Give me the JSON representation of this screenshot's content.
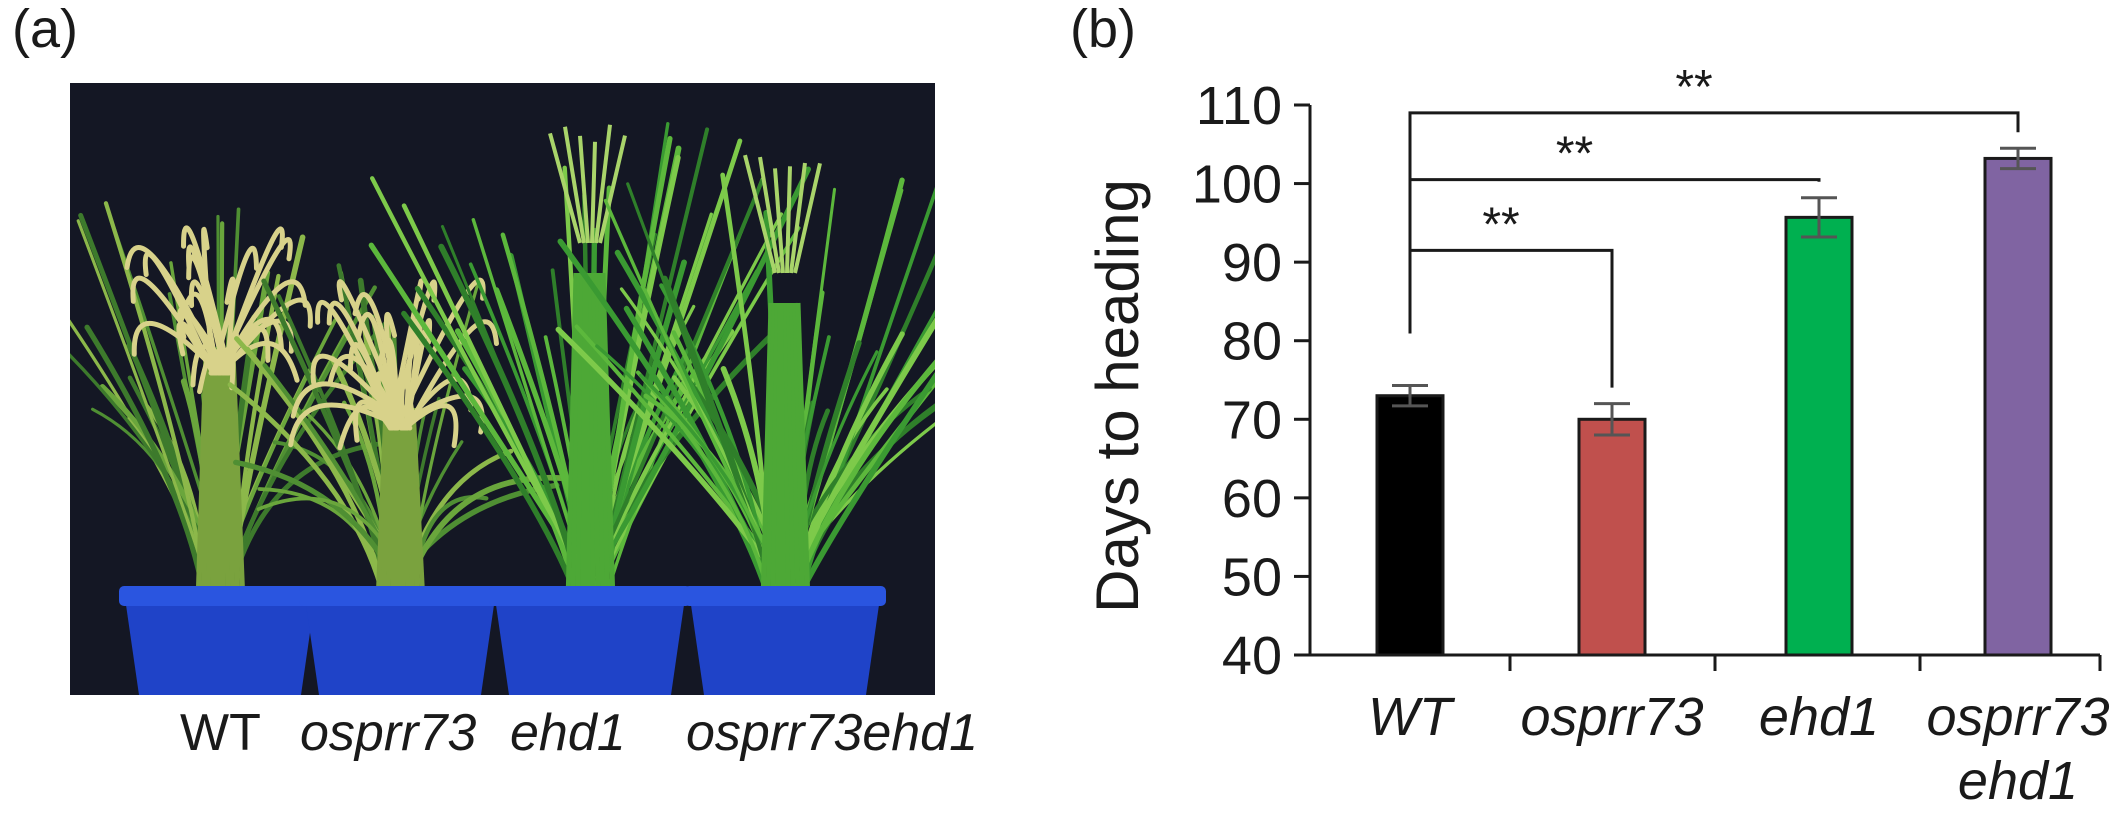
{
  "panels": {
    "a": {
      "label": "(a)"
    },
    "b": {
      "label": "(b)"
    }
  },
  "photo": {
    "icon": "rice-plants-photo",
    "background_color": "#141724",
    "pot_color": "#1f43c8",
    "genotypes": [
      {
        "label": "WT",
        "italic": false,
        "plant": "ripe"
      },
      {
        "label": "osprr73",
        "italic": true,
        "plant": "ripe"
      },
      {
        "label": "ehd1",
        "italic": true,
        "plant": "green"
      },
      {
        "label": "osprr73ehd1",
        "italic": true,
        "plant": "green"
      }
    ]
  },
  "chart_data": {
    "type": "bar",
    "title": "",
    "xlabel": "",
    "ylabel": "Days to heading",
    "ylim": [
      40,
      110
    ],
    "yticks": [
      40,
      50,
      60,
      70,
      80,
      90,
      100,
      110
    ],
    "grid": false,
    "categories": [
      [
        "WT"
      ],
      [
        "osprr73"
      ],
      [
        "ehd1"
      ],
      [
        "osprr73",
        "ehd1"
      ]
    ],
    "values": [
      73,
      70,
      95.7,
      103.2
    ],
    "errors": [
      1.3,
      2.0,
      2.5,
      1.3
    ],
    "colors": [
      "#000000",
      "#c0504d",
      "#00b050",
      "#8064a2"
    ],
    "significance": [
      {
        "from": 0,
        "to": 1,
        "label": "**",
        "y": 91.5
      },
      {
        "from": 0,
        "to": 2,
        "label": "**",
        "y": 100.5
      },
      {
        "from": 0,
        "to": 3,
        "label": "**",
        "y": 109
      }
    ]
  }
}
